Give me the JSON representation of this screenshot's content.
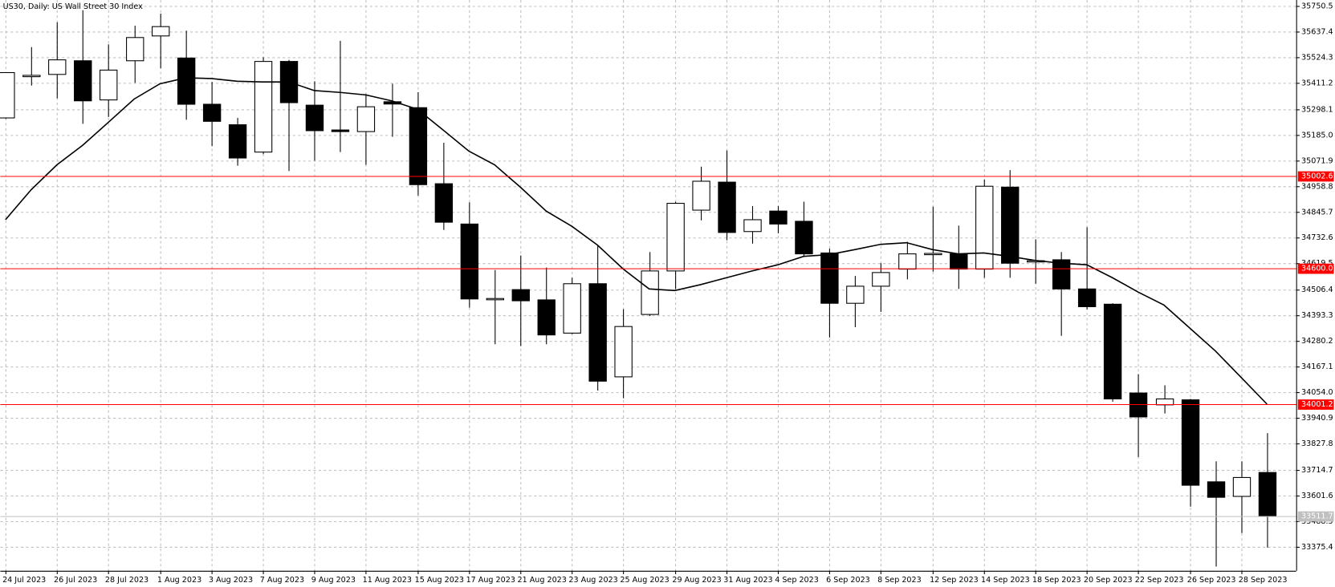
{
  "chart_data": {
    "type": "candlestick",
    "title": "US30, Daily:  US Wall Street 30 Index",
    "categories": [
      "24 Jul 2023",
      null,
      "26 Jul 2023",
      null,
      "28 Jul 2023",
      null,
      "1 Aug 2023",
      null,
      "3 Aug 2023",
      null,
      "7 Aug 2023",
      null,
      "9 Aug 2023",
      null,
      "11 Aug 2023",
      null,
      "15 Aug 2023",
      null,
      "17 Aug 2023",
      null,
      "21 Aug 2023",
      null,
      "23 Aug 2023",
      null,
      "25 Aug 2023",
      null,
      "29 Aug 2023",
      null,
      "31 Aug 2023",
      null,
      "4 Sep 2023",
      null,
      "6 Sep 2023",
      null,
      "8 Sep 2023",
      null,
      "12 Sep 2023",
      null,
      "14 Sep 2023",
      null,
      "18 Sep 2023",
      null,
      "20 Sep 2023",
      null,
      "22 Sep 2023",
      null,
      "26 Sep 2023",
      null,
      "28 Sep 2023",
      null
    ],
    "candles": {
      "open": [
        35259,
        35440,
        35450,
        35510,
        35338,
        35510,
        35619,
        35522,
        35319,
        35229,
        35109,
        35507,
        35315,
        35206,
        35199,
        35330,
        35304,
        34970,
        34793,
        34462,
        34505,
        34460,
        34314,
        34531,
        34122,
        34396,
        34587,
        34854,
        34977,
        34760,
        34850,
        34805,
        34666,
        34445,
        34520,
        34595,
        34660,
        34662,
        34595,
        34955,
        34628,
        34636,
        34508,
        34441,
        34051,
        33999,
        34021,
        33661,
        33597,
        33702
      ],
      "high": [
        35460,
        35570,
        35679,
        35732,
        35582,
        35664,
        35717,
        35642,
        35417,
        35259,
        35525,
        35514,
        35420,
        35597,
        35364,
        35409,
        35372,
        35150,
        34888,
        34591,
        34655,
        34602,
        34557,
        34700,
        34419,
        34670,
        34891,
        35045,
        35116,
        34872,
        34872,
        34891,
        34685,
        34565,
        34621,
        34715,
        34869,
        34786,
        34989,
        35030,
        34726,
        34670,
        34779,
        34445,
        34134,
        34085,
        34025,
        33751,
        33751,
        33875
      ],
      "low": [
        35255,
        35401,
        35345,
        35233,
        35263,
        35413,
        35477,
        35251,
        35135,
        35049,
        35100,
        35026,
        35071,
        35109,
        35053,
        35176,
        34918,
        34767,
        34426,
        34265,
        34257,
        34265,
        34310,
        34062,
        34028,
        34389,
        34508,
        34809,
        34722,
        34707,
        34752,
        34651,
        34295,
        34340,
        34407,
        34550,
        34584,
        34508,
        34557,
        34557,
        34531,
        34302,
        34418,
        34013,
        33770,
        33961,
        33552,
        33289,
        33436,
        33372
      ],
      "close": [
        35458,
        35446,
        35514,
        35334,
        35469,
        35612,
        35660,
        35319,
        35244,
        35083,
        35507,
        35326,
        35203,
        35199,
        35308,
        35320,
        34966,
        34801,
        34464,
        34466,
        34456,
        34306,
        34531,
        34103,
        34343,
        34587,
        34884,
        34981,
        34756,
        34812,
        34793,
        34662,
        34445,
        34520,
        34580,
        34662,
        34664,
        34595,
        34959,
        34621,
        34632,
        34508,
        34430,
        34025,
        33946,
        34025,
        33646,
        33593,
        33680,
        33511.7
      ],
      "up_color": "#ffffff",
      "down_color": "#000000",
      "edge_color": "#000000"
    },
    "moving_average": {
      "color": "#000000",
      "values": [
        34812,
        34944,
        35053,
        35139,
        35240,
        35342,
        35409,
        35435,
        35432,
        35420,
        35417,
        35417,
        35379,
        35371,
        35360,
        35334,
        35297,
        35206,
        35113,
        35053,
        34955,
        34850,
        34783,
        34700,
        34595,
        34508,
        34501,
        34527,
        34557,
        34587,
        34614,
        34651,
        34659,
        34681,
        34704,
        34711,
        34681,
        34662,
        34666,
        34651,
        34633,
        34621,
        34614,
        34557,
        34494,
        34437,
        34336,
        34235,
        34119,
        34002
      ]
    },
    "levels": [
      {
        "value": 35002.6,
        "color": "#ff0000"
      },
      {
        "value": 34600.0,
        "label": "34600.0",
        "color": "#ff0000"
      },
      {
        "value": 34001.2,
        "color": "#ff0000"
      },
      {
        "value": 33511.7,
        "color": "#c0c0c0"
      }
    ],
    "ylim": [
      33270.4,
      35776.8
    ],
    "yticks": [
      35750.5,
      35637.4,
      35524.3,
      35411.2,
      35298.1,
      {
        "value": 35185.0,
        "label": "35185.0"
      },
      35071.9,
      34958.8,
      34845.7,
      34732.6,
      34619.5,
      34506.4,
      34393.3,
      34280.2,
      34167.1,
      {
        "value": 34054.0,
        "label": "34054.0"
      },
      33940.9,
      33827.8,
      33714.7,
      33601.6,
      33488.5,
      33375.4
    ],
    "grid": true
  }
}
